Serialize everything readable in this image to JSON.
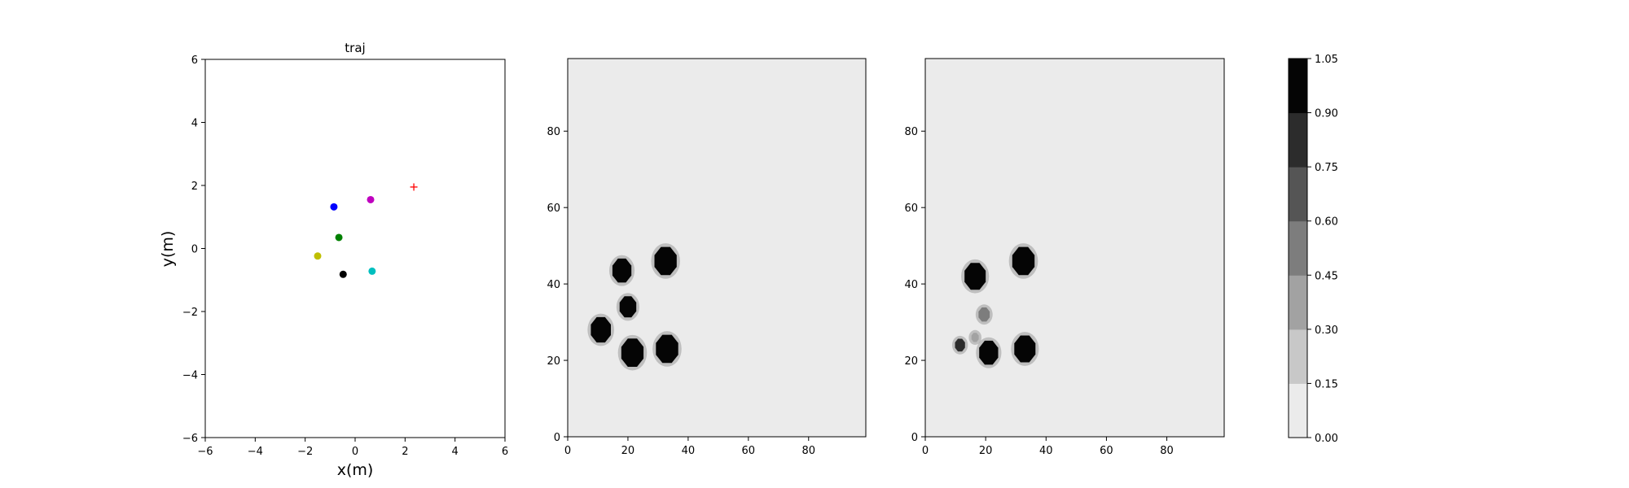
{
  "chart_data": [
    {
      "type": "scatter",
      "title": "traj",
      "xlabel": "x(m)",
      "ylabel": "y(m)",
      "xlim": [
        -6,
        6
      ],
      "ylim": [
        -6,
        6
      ],
      "xticks": [
        -6,
        -4,
        -2,
        0,
        2,
        4,
        6
      ],
      "yticks": [
        -6,
        -4,
        -2,
        0,
        2,
        4,
        6
      ],
      "grid": false,
      "points": [
        {
          "x": -0.85,
          "y": 1.32,
          "color": "#0000ff",
          "marker": "dot"
        },
        {
          "x": 0.62,
          "y": 1.55,
          "color": "#bf00bf",
          "marker": "dot"
        },
        {
          "x": -0.65,
          "y": 0.35,
          "color": "#008000",
          "marker": "dot"
        },
        {
          "x": -1.5,
          "y": -0.24,
          "color": "#bfbf00",
          "marker": "dot"
        },
        {
          "x": -0.48,
          "y": -0.82,
          "color": "#000000",
          "marker": "dot"
        },
        {
          "x": 0.68,
          "y": -0.72,
          "color": "#00bfbf",
          "marker": "dot"
        },
        {
          "x": 2.35,
          "y": 1.95,
          "color": "#ff0000",
          "marker": "plus"
        }
      ]
    },
    {
      "type": "heatmap",
      "title": "",
      "xlim": [
        0,
        99
      ],
      "ylim": [
        0,
        99
      ],
      "xticks": [
        0,
        20,
        40,
        60,
        80
      ],
      "yticks": [
        0,
        20,
        40,
        60,
        80
      ],
      "background_level": 0.0,
      "blobs": [
        {
          "x": 18,
          "y": 43.5,
          "r": 3.4,
          "level": 1.0
        },
        {
          "x": 32.5,
          "y": 46,
          "r": 4.0,
          "level": 1.0
        },
        {
          "x": 20,
          "y": 34,
          "r": 3.0,
          "level": 1.0
        },
        {
          "x": 11,
          "y": 28,
          "r": 3.6,
          "level": 1.0
        },
        {
          "x": 21.5,
          "y": 22,
          "r": 4.0,
          "level": 1.0
        },
        {
          "x": 33,
          "y": 23,
          "r": 4.0,
          "level": 1.0
        }
      ]
    },
    {
      "type": "heatmap",
      "title": "",
      "xlim": [
        0,
        99
      ],
      "ylim": [
        0,
        99
      ],
      "xticks": [
        0,
        20,
        40,
        60,
        80
      ],
      "yticks": [
        0,
        20,
        40,
        60,
        80
      ],
      "background_level": 0.0,
      "blobs": [
        {
          "x": 16.5,
          "y": 42,
          "r": 3.8,
          "level": 1.0
        },
        {
          "x": 32.5,
          "y": 46,
          "r": 4.0,
          "level": 1.0
        },
        {
          "x": 33,
          "y": 23,
          "r": 3.8,
          "level": 1.0
        },
        {
          "x": 21,
          "y": 22,
          "r": 3.4,
          "level": 1.0
        },
        {
          "x": 19.5,
          "y": 32,
          "r": 2.0,
          "level": 0.5
        },
        {
          "x": 11.5,
          "y": 24,
          "r": 1.8,
          "level": 0.75
        },
        {
          "x": 16.5,
          "y": 26,
          "r": 1.3,
          "level": 0.3
        }
      ]
    },
    {
      "type": "colorbar",
      "levels": [
        0.0,
        0.15,
        0.3,
        0.45,
        0.6,
        0.75,
        0.9,
        1.05
      ],
      "tick_labels": [
        "0.00",
        "0.15",
        "0.30",
        "0.45",
        "0.60",
        "0.75",
        "0.90",
        "1.05"
      ],
      "colors": [
        "#ebebeb",
        "#c8c8c8",
        "#a2a2a2",
        "#7d7d7d",
        "#555555",
        "#2c2c2c",
        "#050505"
      ]
    }
  ]
}
